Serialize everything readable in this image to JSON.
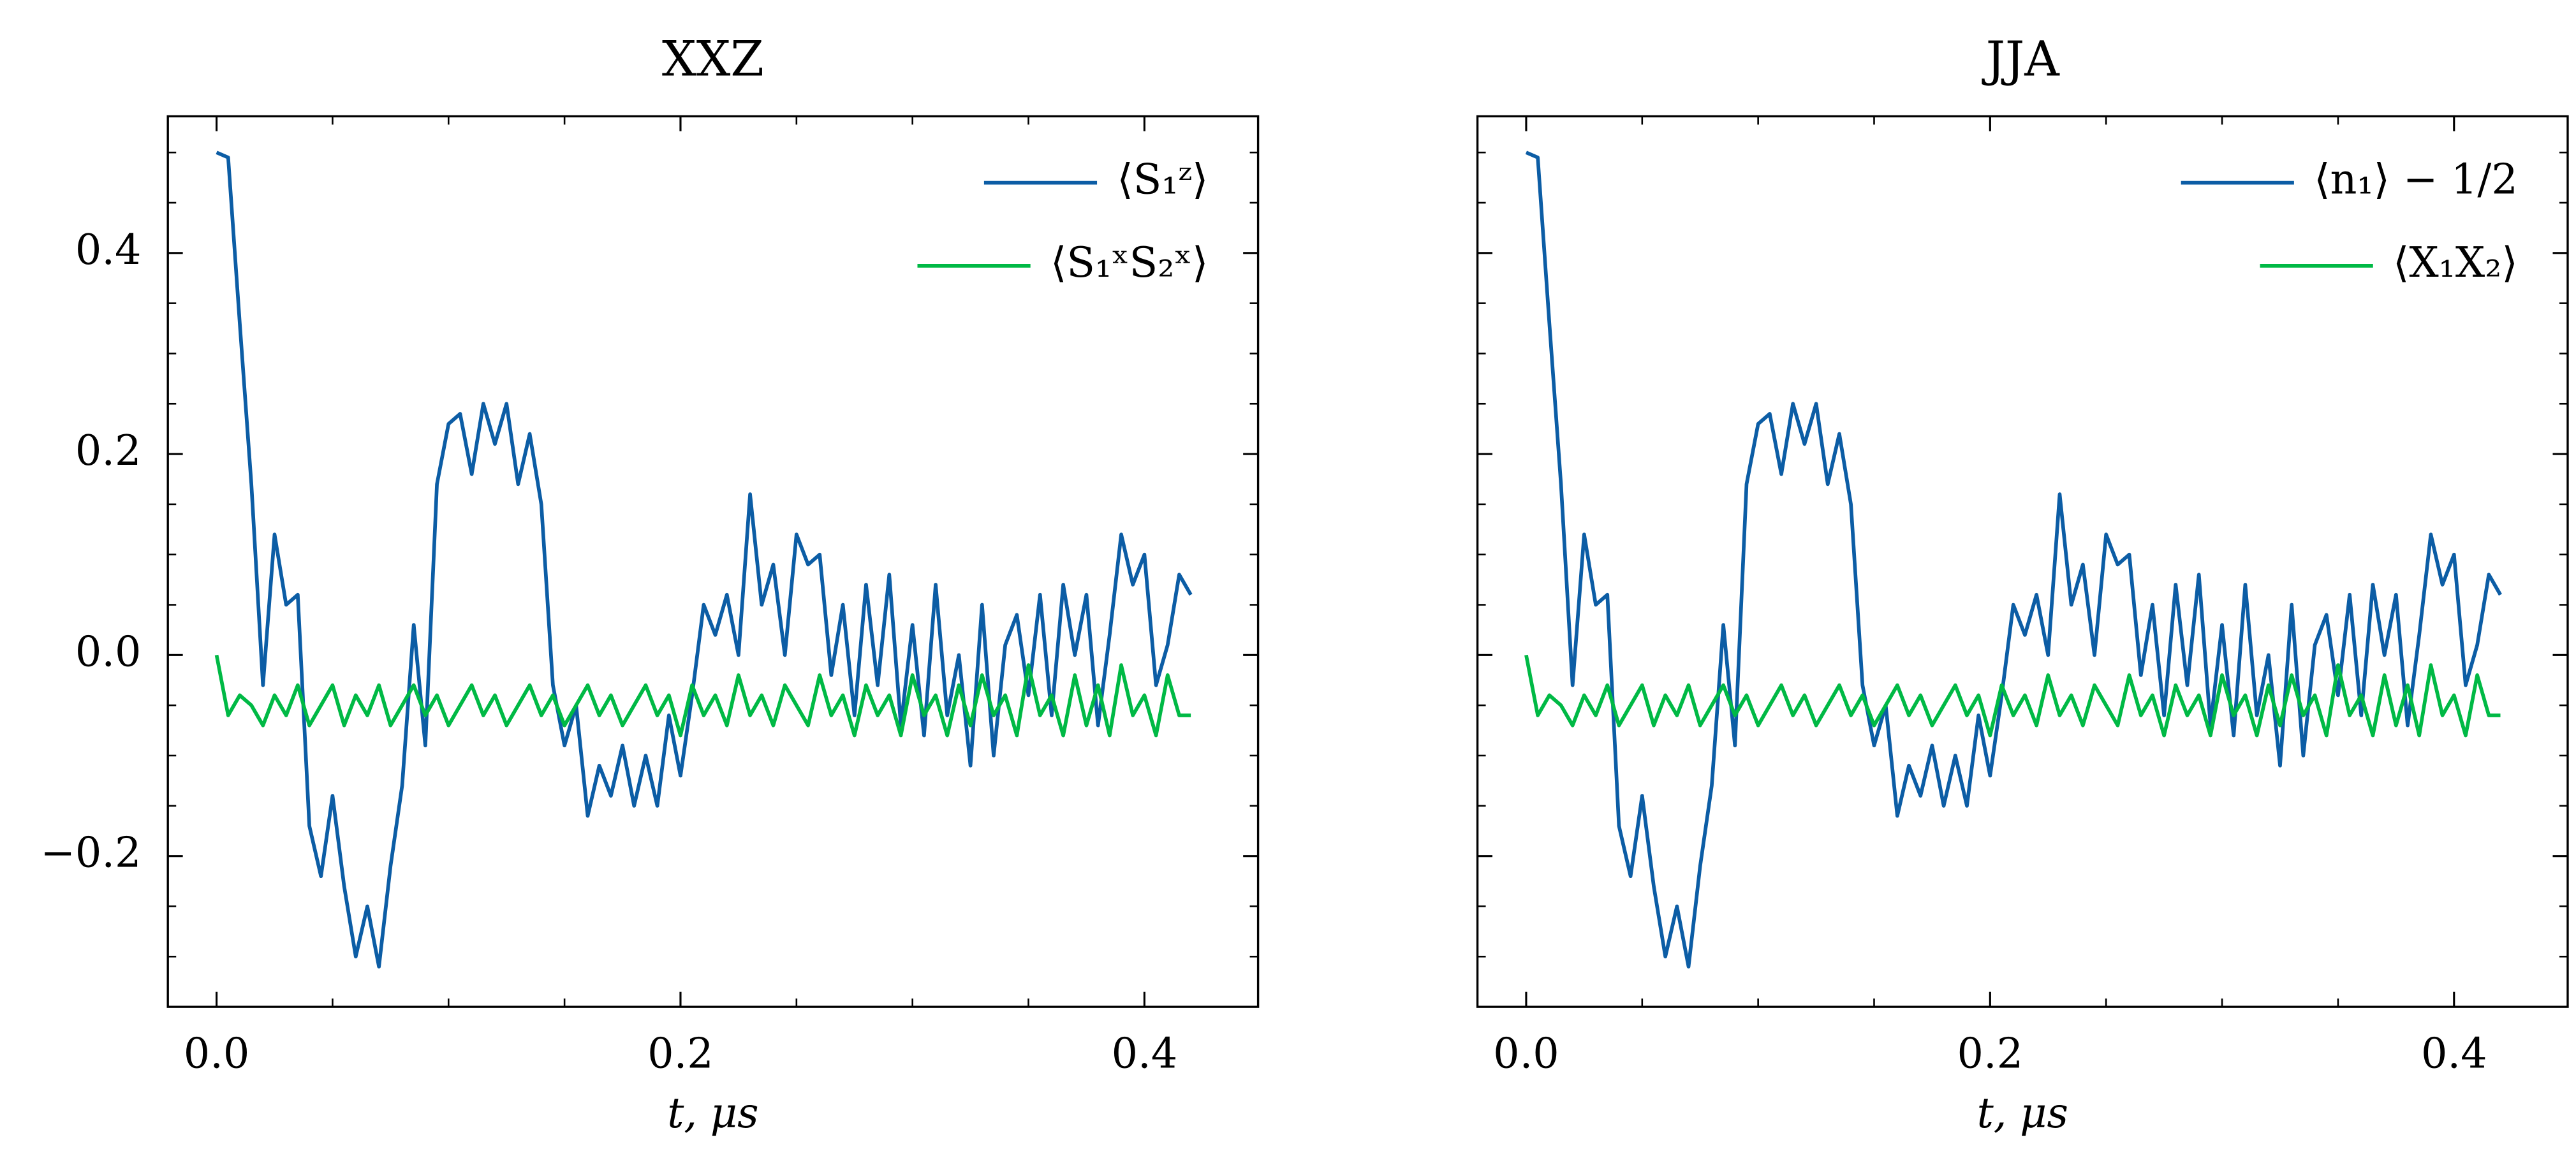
{
  "chart_data": [
    {
      "type": "line",
      "title": "XXZ",
      "xlabel": "t, μs",
      "x": [
        0,
        0.005,
        0.01,
        0.015,
        0.02,
        0.025,
        0.03,
        0.035,
        0.04,
        0.045,
        0.05,
        0.055,
        0.06,
        0.065,
        0.07,
        0.075,
        0.08,
        0.085,
        0.09,
        0.095,
        0.1,
        0.105,
        0.11,
        0.115,
        0.12,
        0.125,
        0.13,
        0.135,
        0.14,
        0.145,
        0.15,
        0.155,
        0.16,
        0.165,
        0.17,
        0.175,
        0.18,
        0.185,
        0.19,
        0.195,
        0.2,
        0.205,
        0.21,
        0.215,
        0.22,
        0.225,
        0.23,
        0.235,
        0.24,
        0.245,
        0.25,
        0.255,
        0.26,
        0.265,
        0.27,
        0.275,
        0.28,
        0.285,
        0.29,
        0.295,
        0.3,
        0.305,
        0.31,
        0.315,
        0.32,
        0.325,
        0.33,
        0.335,
        0.34,
        0.345,
        0.35,
        0.355,
        0.36,
        0.365,
        0.37,
        0.375,
        0.38,
        0.385,
        0.39,
        0.395,
        0.4,
        0.405,
        0.41,
        0.415,
        0.42
      ],
      "series": [
        {
          "name": "⟨S₁ᶻ⟩",
          "color": "#0c5da5",
          "values": [
            0.5,
            0.495,
            0.33,
            0.17,
            -0.03,
            0.12,
            0.05,
            0.06,
            -0.17,
            -0.22,
            -0.14,
            -0.23,
            -0.3,
            -0.25,
            -0.31,
            -0.21,
            -0.13,
            0.03,
            -0.09,
            0.17,
            0.23,
            0.24,
            0.18,
            0.25,
            0.21,
            0.25,
            0.17,
            0.22,
            0.15,
            -0.03,
            -0.09,
            -0.05,
            -0.16,
            -0.11,
            -0.14,
            -0.09,
            -0.15,
            -0.1,
            -0.15,
            -0.06,
            -0.12,
            -0.04,
            0.05,
            0.02,
            0.06,
            0.0,
            0.16,
            0.05,
            0.09,
            0.0,
            0.12,
            0.09,
            0.1,
            -0.02,
            0.05,
            -0.06,
            0.07,
            -0.03,
            0.08,
            -0.07,
            0.03,
            -0.08,
            0.07,
            -0.06,
            0.0,
            -0.11,
            0.05,
            -0.1,
            0.01,
            0.04,
            -0.04,
            0.06,
            -0.06,
            0.07,
            0.0,
            0.06,
            -0.07,
            0.02,
            0.12,
            0.07,
            0.1,
            -0.03,
            0.01,
            0.08,
            0.06
          ]
        },
        {
          "name": "⟨S₁ˣS₂ˣ⟩",
          "color": "#00b945",
          "values": [
            0,
            -0.06,
            -0.04,
            -0.05,
            -0.07,
            -0.04,
            -0.06,
            -0.03,
            -0.07,
            -0.05,
            -0.03,
            -0.07,
            -0.04,
            -0.06,
            -0.03,
            -0.07,
            -0.05,
            -0.03,
            -0.06,
            -0.04,
            -0.07,
            -0.05,
            -0.03,
            -0.06,
            -0.04,
            -0.07,
            -0.05,
            -0.03,
            -0.06,
            -0.04,
            -0.07,
            -0.05,
            -0.03,
            -0.06,
            -0.04,
            -0.07,
            -0.05,
            -0.03,
            -0.06,
            -0.04,
            -0.08,
            -0.03,
            -0.06,
            -0.04,
            -0.07,
            -0.02,
            -0.06,
            -0.04,
            -0.07,
            -0.03,
            -0.05,
            -0.07,
            -0.02,
            -0.06,
            -0.04,
            -0.08,
            -0.03,
            -0.06,
            -0.04,
            -0.08,
            -0.02,
            -0.06,
            -0.04,
            -0.08,
            -0.03,
            -0.07,
            -0.02,
            -0.06,
            -0.04,
            -0.08,
            -0.01,
            -0.06,
            -0.04,
            -0.08,
            -0.02,
            -0.07,
            -0.03,
            -0.08,
            -0.01,
            -0.06,
            -0.04,
            -0.08,
            -0.02,
            -0.06,
            -0.06
          ]
        }
      ],
      "xlim": [
        -0.021,
        0.449
      ],
      "ylim": [
        -0.35,
        0.536
      ],
      "xticks": [
        {
          "value": 0,
          "label": "0.0"
        },
        0.2,
        0.4
      ],
      "xminorticks": [
        0.05,
        0.1,
        0.15,
        0.25,
        0.3,
        0.35
      ],
      "yticks": [
        {
          "value": -0.2,
          "label": "−0.2"
        },
        {
          "value": 0,
          "label": "0.0"
        },
        0.2,
        0.4
      ],
      "yminorticks": [
        -0.3,
        -0.25,
        -0.15,
        -0.1,
        -0.05,
        0.05,
        0.1,
        0.15,
        0.25,
        0.3,
        0.35,
        0.45,
        0.5
      ],
      "ytick_labels": true,
      "legend": "upper right",
      "grid": false
    },
    {
      "type": "line",
      "title": "JJA",
      "xlabel": "t, μs",
      "x": [
        0,
        0.005,
        0.01,
        0.015,
        0.02,
        0.025,
        0.03,
        0.035,
        0.04,
        0.045,
        0.05,
        0.055,
        0.06,
        0.065,
        0.07,
        0.075,
        0.08,
        0.085,
        0.09,
        0.095,
        0.1,
        0.105,
        0.11,
        0.115,
        0.12,
        0.125,
        0.13,
        0.135,
        0.14,
        0.145,
        0.15,
        0.155,
        0.16,
        0.165,
        0.17,
        0.175,
        0.18,
        0.185,
        0.19,
        0.195,
        0.2,
        0.205,
        0.21,
        0.215,
        0.22,
        0.225,
        0.23,
        0.235,
        0.24,
        0.245,
        0.25,
        0.255,
        0.26,
        0.265,
        0.27,
        0.275,
        0.28,
        0.285,
        0.29,
        0.295,
        0.3,
        0.305,
        0.31,
        0.315,
        0.32,
        0.325,
        0.33,
        0.335,
        0.34,
        0.345,
        0.35,
        0.355,
        0.36,
        0.365,
        0.37,
        0.375,
        0.38,
        0.385,
        0.39,
        0.395,
        0.4,
        0.405,
        0.41,
        0.415,
        0.42
      ],
      "series": [
        {
          "name": "⟨n₁⟩ − 1/2",
          "color": "#0c5da5",
          "values": [
            0.5,
            0.495,
            0.33,
            0.17,
            -0.03,
            0.12,
            0.05,
            0.06,
            -0.17,
            -0.22,
            -0.14,
            -0.23,
            -0.3,
            -0.25,
            -0.31,
            -0.21,
            -0.13,
            0.03,
            -0.09,
            0.17,
            0.23,
            0.24,
            0.18,
            0.25,
            0.21,
            0.25,
            0.17,
            0.22,
            0.15,
            -0.03,
            -0.09,
            -0.05,
            -0.16,
            -0.11,
            -0.14,
            -0.09,
            -0.15,
            -0.1,
            -0.15,
            -0.06,
            -0.12,
            -0.04,
            0.05,
            0.02,
            0.06,
            0.0,
            0.16,
            0.05,
            0.09,
            0.0,
            0.12,
            0.09,
            0.1,
            -0.02,
            0.05,
            -0.06,
            0.07,
            -0.03,
            0.08,
            -0.07,
            0.03,
            -0.08,
            0.07,
            -0.06,
            0.0,
            -0.11,
            0.05,
            -0.1,
            0.01,
            0.04,
            -0.04,
            0.06,
            -0.06,
            0.07,
            0.0,
            0.06,
            -0.07,
            0.02,
            0.12,
            0.07,
            0.1,
            -0.03,
            0.01,
            0.08,
            0.06
          ]
        },
        {
          "name": "⟨X₁X₂⟩",
          "color": "#00b945",
          "values": [
            0,
            -0.06,
            -0.04,
            -0.05,
            -0.07,
            -0.04,
            -0.06,
            -0.03,
            -0.07,
            -0.05,
            -0.03,
            -0.07,
            -0.04,
            -0.06,
            -0.03,
            -0.07,
            -0.05,
            -0.03,
            -0.06,
            -0.04,
            -0.07,
            -0.05,
            -0.03,
            -0.06,
            -0.04,
            -0.07,
            -0.05,
            -0.03,
            -0.06,
            -0.04,
            -0.07,
            -0.05,
            -0.03,
            -0.06,
            -0.04,
            -0.07,
            -0.05,
            -0.03,
            -0.06,
            -0.04,
            -0.08,
            -0.03,
            -0.06,
            -0.04,
            -0.07,
            -0.02,
            -0.06,
            -0.04,
            -0.07,
            -0.03,
            -0.05,
            -0.07,
            -0.02,
            -0.06,
            -0.04,
            -0.08,
            -0.03,
            -0.06,
            -0.04,
            -0.08,
            -0.02,
            -0.06,
            -0.04,
            -0.08,
            -0.03,
            -0.07,
            -0.02,
            -0.06,
            -0.04,
            -0.08,
            -0.01,
            -0.06,
            -0.04,
            -0.08,
            -0.02,
            -0.07,
            -0.03,
            -0.08,
            -0.01,
            -0.06,
            -0.04,
            -0.08,
            -0.02,
            -0.06,
            -0.06
          ]
        }
      ],
      "xlim": [
        -0.021,
        0.449
      ],
      "ylim": [
        -0.35,
        0.536
      ],
      "xticks": [
        {
          "value": 0,
          "label": "0.0"
        },
        0.2,
        0.4
      ],
      "xminorticks": [
        0.05,
        0.1,
        0.15,
        0.25,
        0.3,
        0.35
      ],
      "yticks": [
        {
          "value": -0.2,
          "label": "−0.2"
        },
        {
          "value": 0,
          "label": "0.0"
        },
        0.2,
        0.4
      ],
      "yminorticks": [
        -0.3,
        -0.25,
        -0.15,
        -0.1,
        -0.05,
        0.05,
        0.1,
        0.15,
        0.25,
        0.3,
        0.35,
        0.45,
        0.5
      ],
      "ytick_labels": false,
      "legend": "upper right",
      "grid": false
    }
  ]
}
